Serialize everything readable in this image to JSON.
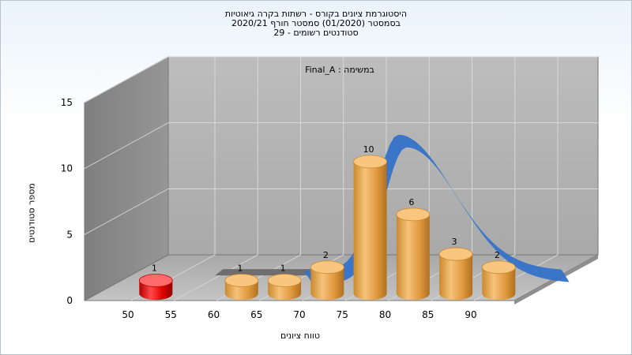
{
  "title_lines": [
    "היסטוגרמת ציונים בקורס - רשתות בקרה גיאוטיות",
    "בסמסטר  (01/2020)  סמסטר חורף 2020/21",
    "סטודנטים רשומים - 29"
  ],
  "annotation": "Final_A : במשימה",
  "chart_data": {
    "type": "bar",
    "categories": [
      "50",
      "60",
      "65",
      "70",
      "75",
      "80",
      "85",
      "90"
    ],
    "values": [
      1,
      1,
      1,
      2,
      10,
      6,
      3,
      2
    ],
    "bar_colors": [
      "#e00000",
      "#e8a040",
      "#e8a040",
      "#e8a040",
      "#e8a040",
      "#e8a040",
      "#e8a040",
      "#e8a040"
    ],
    "x_ticks": [
      "50",
      "55",
      "60",
      "65",
      "70",
      "75",
      "80",
      "85",
      "90"
    ],
    "y_ticks": [
      "0",
      "5",
      "10",
      "15"
    ],
    "ylim": [
      0,
      15
    ],
    "xlabel": "טווח ציונים",
    "ylabel": "מספר סטודנטים",
    "curve_color": "#3572c9",
    "grid": true
  }
}
